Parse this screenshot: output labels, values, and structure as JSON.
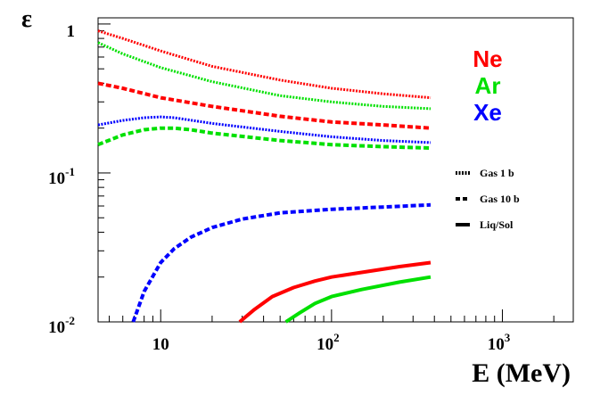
{
  "chart_data": {
    "type": "line",
    "xscale": "log",
    "yscale": "log",
    "xlim": [
      4.3,
      2600
    ],
    "ylim": [
      0.01,
      1.1
    ],
    "xlabel": "E (MeV)",
    "ylabel": "ε",
    "x_ticks": [
      {
        "value": 10,
        "base": "10",
        "exp": ""
      },
      {
        "value": 100,
        "base": "10",
        "exp": "2"
      },
      {
        "value": 1000,
        "base": "10",
        "exp": "3"
      }
    ],
    "y_ticks": [
      {
        "value": 1,
        "base": "1",
        "exp": ""
      },
      {
        "value": 0.1,
        "base": "10",
        "exp": "-1"
      },
      {
        "value": 0.01,
        "base": "10",
        "exp": "-2"
      }
    ],
    "element_labels": [
      {
        "name": "Ne",
        "color": "#ff0000"
      },
      {
        "name": "Ar",
        "color": "#00e000"
      },
      {
        "name": "Xe",
        "color": "#0000ff"
      }
    ],
    "legend": [
      {
        "label": "Gas 1 b",
        "style": "dotted"
      },
      {
        "label": "Gas 10 b",
        "style": "dashed"
      },
      {
        "label": "Liq/Sol",
        "style": "solid"
      }
    ],
    "series": [
      {
        "element": "Ne",
        "phase": "Gas 1 b",
        "color": "#ff0000",
        "style": "dotted",
        "x": [
          4.3,
          6,
          10,
          20,
          50,
          100,
          200,
          380
        ],
        "y": [
          0.9,
          0.8,
          0.66,
          0.52,
          0.42,
          0.37,
          0.34,
          0.32
        ]
      },
      {
        "element": "Ar",
        "phase": "Gas 1 b",
        "color": "#00e000",
        "style": "dotted",
        "x": [
          4.3,
          6,
          10,
          20,
          50,
          100,
          200,
          380
        ],
        "y": [
          0.75,
          0.63,
          0.51,
          0.41,
          0.33,
          0.3,
          0.28,
          0.27
        ]
      },
      {
        "element": "Ne",
        "phase": "Gas 10 b",
        "color": "#ff0000",
        "style": "dashed",
        "x": [
          4.3,
          6,
          10,
          20,
          50,
          100,
          200,
          380
        ],
        "y": [
          0.4,
          0.37,
          0.32,
          0.28,
          0.24,
          0.22,
          0.21,
          0.2
        ]
      },
      {
        "element": "Xe",
        "phase": "Gas 1 b",
        "color": "#0000ff",
        "style": "dotted",
        "x": [
          4.3,
          6,
          8,
          10,
          12,
          20,
          50,
          100,
          200,
          380
        ],
        "y": [
          0.21,
          0.225,
          0.235,
          0.238,
          0.235,
          0.215,
          0.19,
          0.175,
          0.165,
          0.16
        ]
      },
      {
        "element": "Ar",
        "phase": "Gas 10 b",
        "color": "#00e000",
        "style": "dashed",
        "x": [
          4.3,
          6,
          8,
          10,
          12,
          15,
          20,
          50,
          100,
          200,
          380
        ],
        "y": [
          0.155,
          0.18,
          0.195,
          0.2,
          0.2,
          0.195,
          0.185,
          0.165,
          0.155,
          0.15,
          0.147
        ]
      },
      {
        "element": "Xe",
        "phase": "Gas 10 b",
        "color": "#0000ff",
        "style": "dashed",
        "x": [
          6.9,
          8,
          10,
          12,
          15,
          20,
          30,
          50,
          100,
          200,
          380
        ],
        "y": [
          0.01,
          0.016,
          0.025,
          0.031,
          0.037,
          0.043,
          0.049,
          0.054,
          0.057,
          0.059,
          0.061
        ]
      },
      {
        "element": "Ne",
        "phase": "Liq/Sol",
        "color": "#ff0000",
        "style": "solid",
        "x": [
          29,
          35,
          45,
          60,
          80,
          100,
          150,
          250,
          380
        ],
        "y": [
          0.01,
          0.012,
          0.0148,
          0.017,
          0.0188,
          0.02,
          0.0215,
          0.0235,
          0.025
        ]
      },
      {
        "element": "Ar",
        "phase": "Liq/Sol",
        "color": "#00e000",
        "style": "solid",
        "x": [
          54,
          65,
          80,
          100,
          150,
          250,
          380
        ],
        "y": [
          0.01,
          0.0115,
          0.0133,
          0.0148,
          0.0165,
          0.0185,
          0.02
        ]
      }
    ]
  }
}
